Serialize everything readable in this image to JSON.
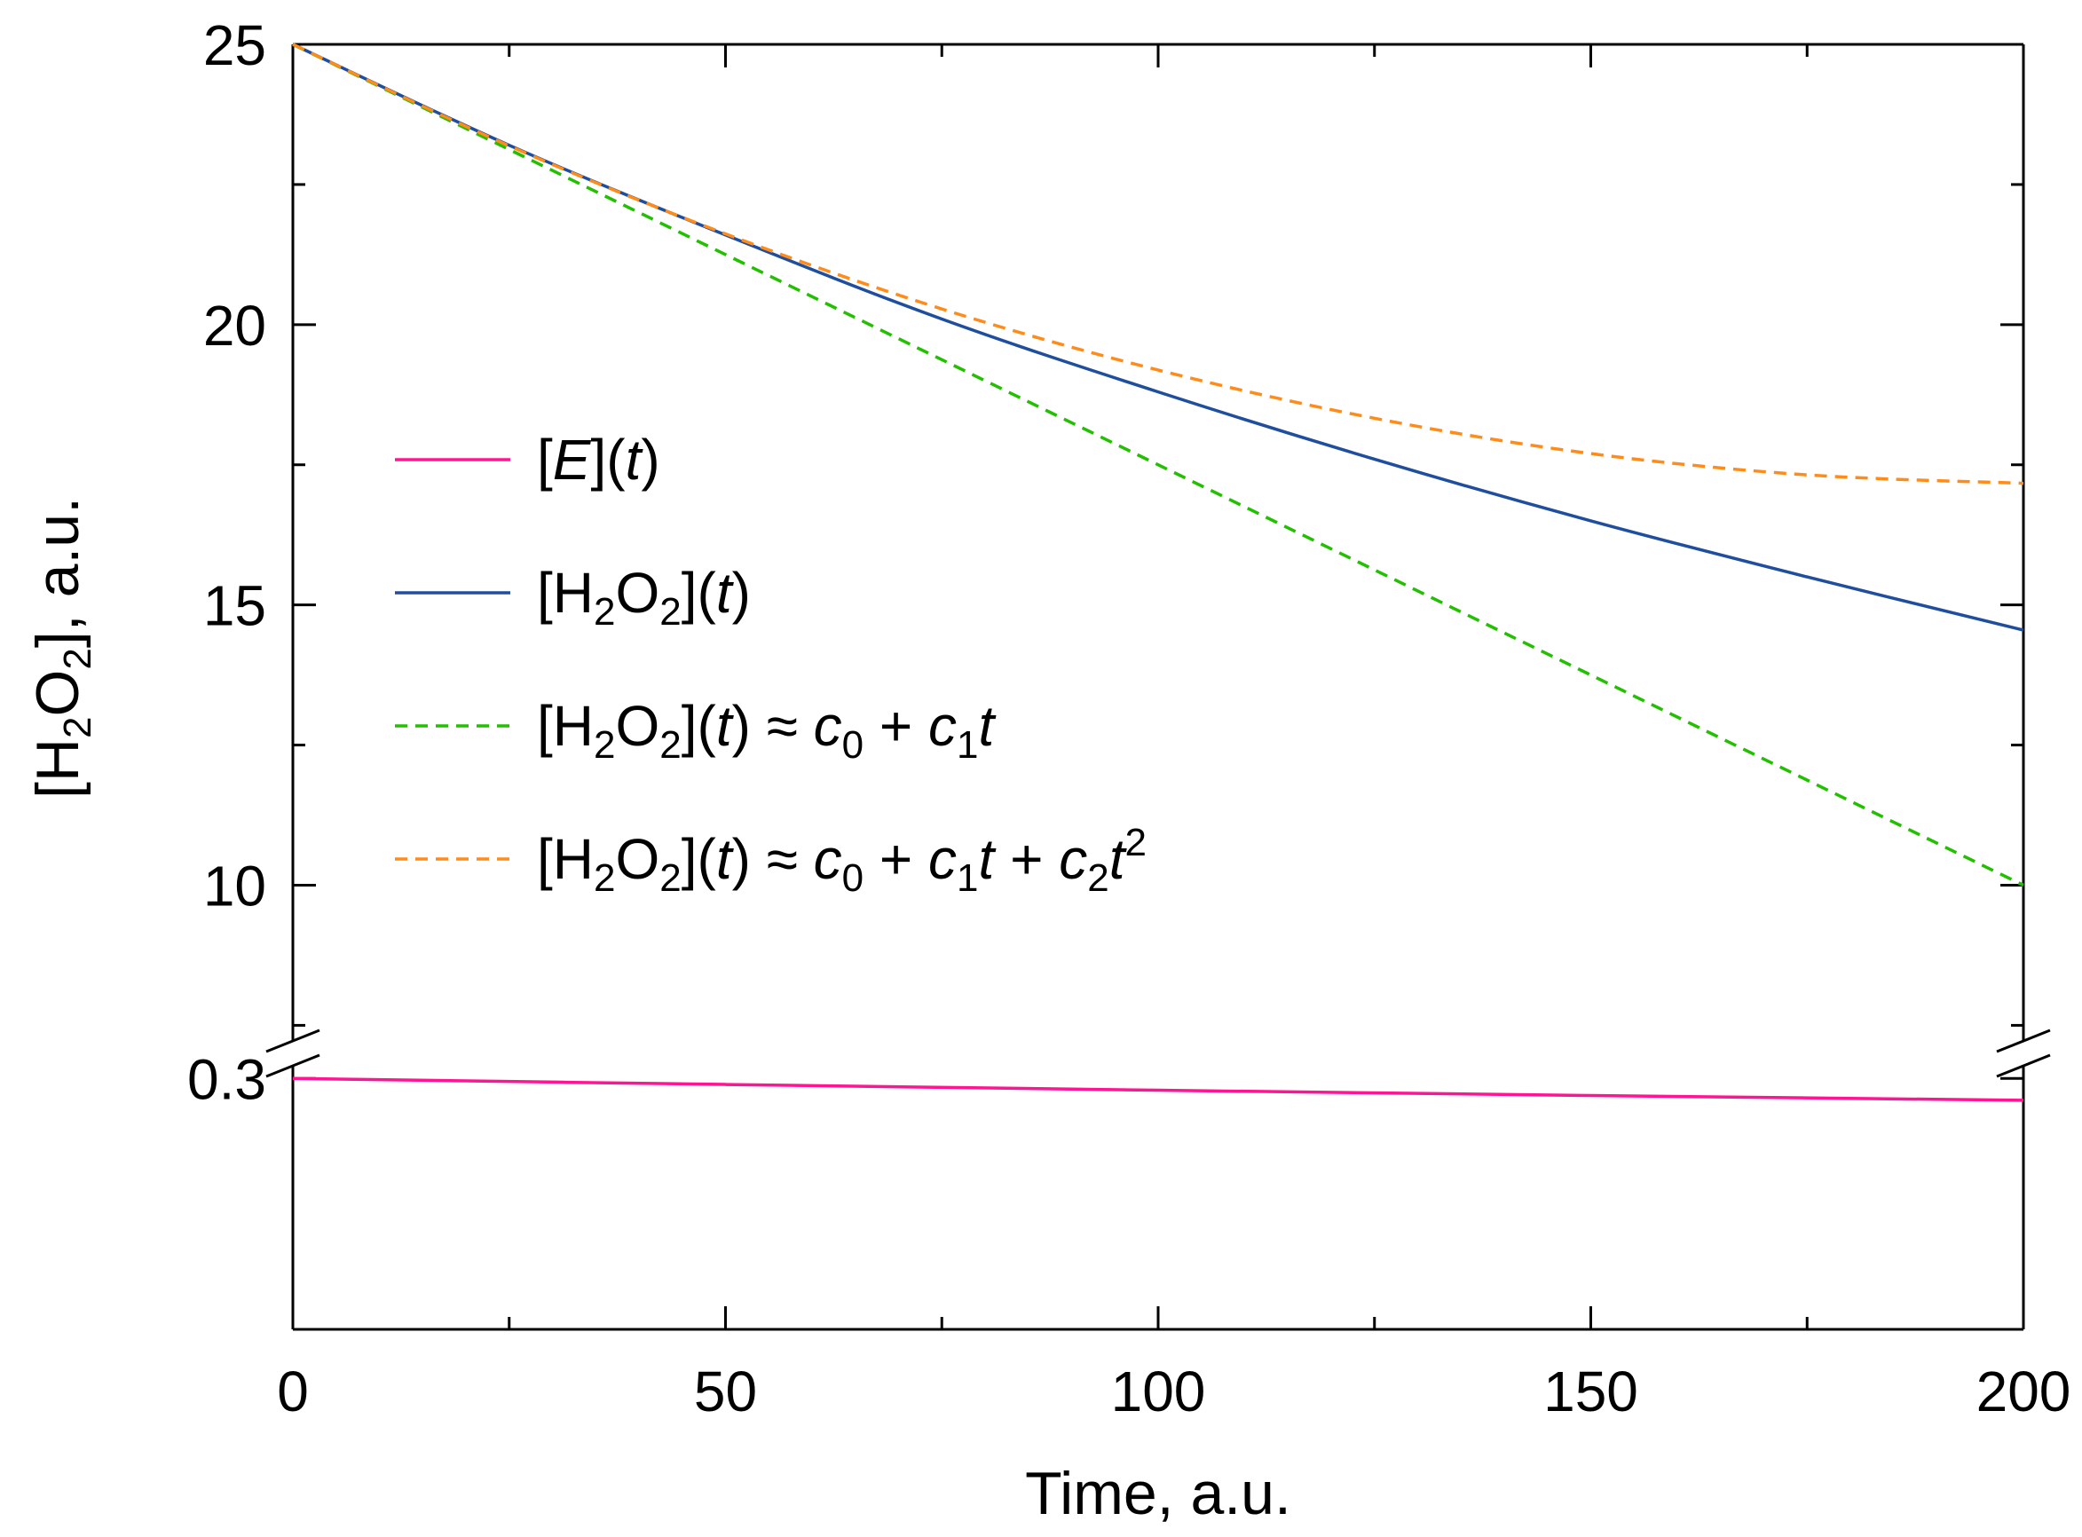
{
  "chart_data": {
    "type": "line",
    "xlabel": "Time, a.u.",
    "ylabel_parts": [
      "[H",
      "2",
      "O",
      "2",
      "], a.u."
    ],
    "xlim": [
      0,
      200
    ],
    "x_ticks": [
      0,
      50,
      100,
      150,
      200
    ],
    "x_tick_labels": [
      "0",
      "50",
      "100",
      "150",
      "200"
    ],
    "broken_y_axis": true,
    "upper_panel": {
      "ylim": [
        7,
        25
      ],
      "y_ticks": [
        10,
        15,
        20,
        25
      ],
      "y_tick_labels": [
        "10",
        "15",
        "20",
        "25"
      ]
    },
    "lower_panel": {
      "ylim": [
        0.2,
        0.31
      ],
      "y_ticks": [
        0.3
      ],
      "y_tick_labels": [
        "0.3"
      ]
    },
    "grid": false,
    "legend_position": "left-center",
    "series": [
      {
        "key": "E",
        "panel": "lower",
        "color": "#ff1493",
        "dashed": false,
        "legend_parts": [
          "[",
          "E",
          "](",
          "t",
          ")"
        ],
        "x": [
          0,
          50,
          100,
          150,
          200
        ],
        "y": [
          0.3,
          0.2976,
          0.2953,
          0.2932,
          0.2913
        ]
      },
      {
        "key": "H2O2",
        "panel": "upper",
        "color": "#1f4e9e",
        "dashed": false,
        "legend_parts": [
          "[H",
          "2",
          "O",
          "2",
          "](",
          "t",
          ")"
        ],
        "x": [
          0,
          25,
          50,
          75,
          100,
          125,
          150,
          175,
          200
        ],
        "y": [
          25.0,
          23.2,
          21.6,
          20.1,
          18.8,
          17.6,
          16.5,
          15.5,
          14.55
        ]
      },
      {
        "key": "linear",
        "panel": "upper",
        "color": "#22c000",
        "dashed": true,
        "legend_parts": [
          "[H",
          "2",
          "O",
          "2",
          "](",
          "t",
          ") ≈ ",
          "c",
          "0",
          " + ",
          "c",
          "1",
          "t"
        ],
        "x": [
          0,
          200
        ],
        "y": [
          25.0,
          10.0
        ]
      },
      {
        "key": "quadratic",
        "panel": "upper",
        "color": "#ff8c1a",
        "dashed": true,
        "legend_parts": [
          "[H",
          "2",
          "O",
          "2",
          "](",
          "t",
          ") ≈ ",
          "c",
          "0",
          " + ",
          "c",
          "1",
          "t",
          " + ",
          "c",
          "2",
          "t",
          "2"
        ],
        "x": [
          0,
          25,
          50,
          75,
          100,
          125,
          150,
          175,
          200
        ],
        "y": [
          25.0,
          23.19,
          21.62,
          20.28,
          19.19,
          18.33,
          17.7,
          17.32,
          17.17
        ]
      }
    ]
  }
}
